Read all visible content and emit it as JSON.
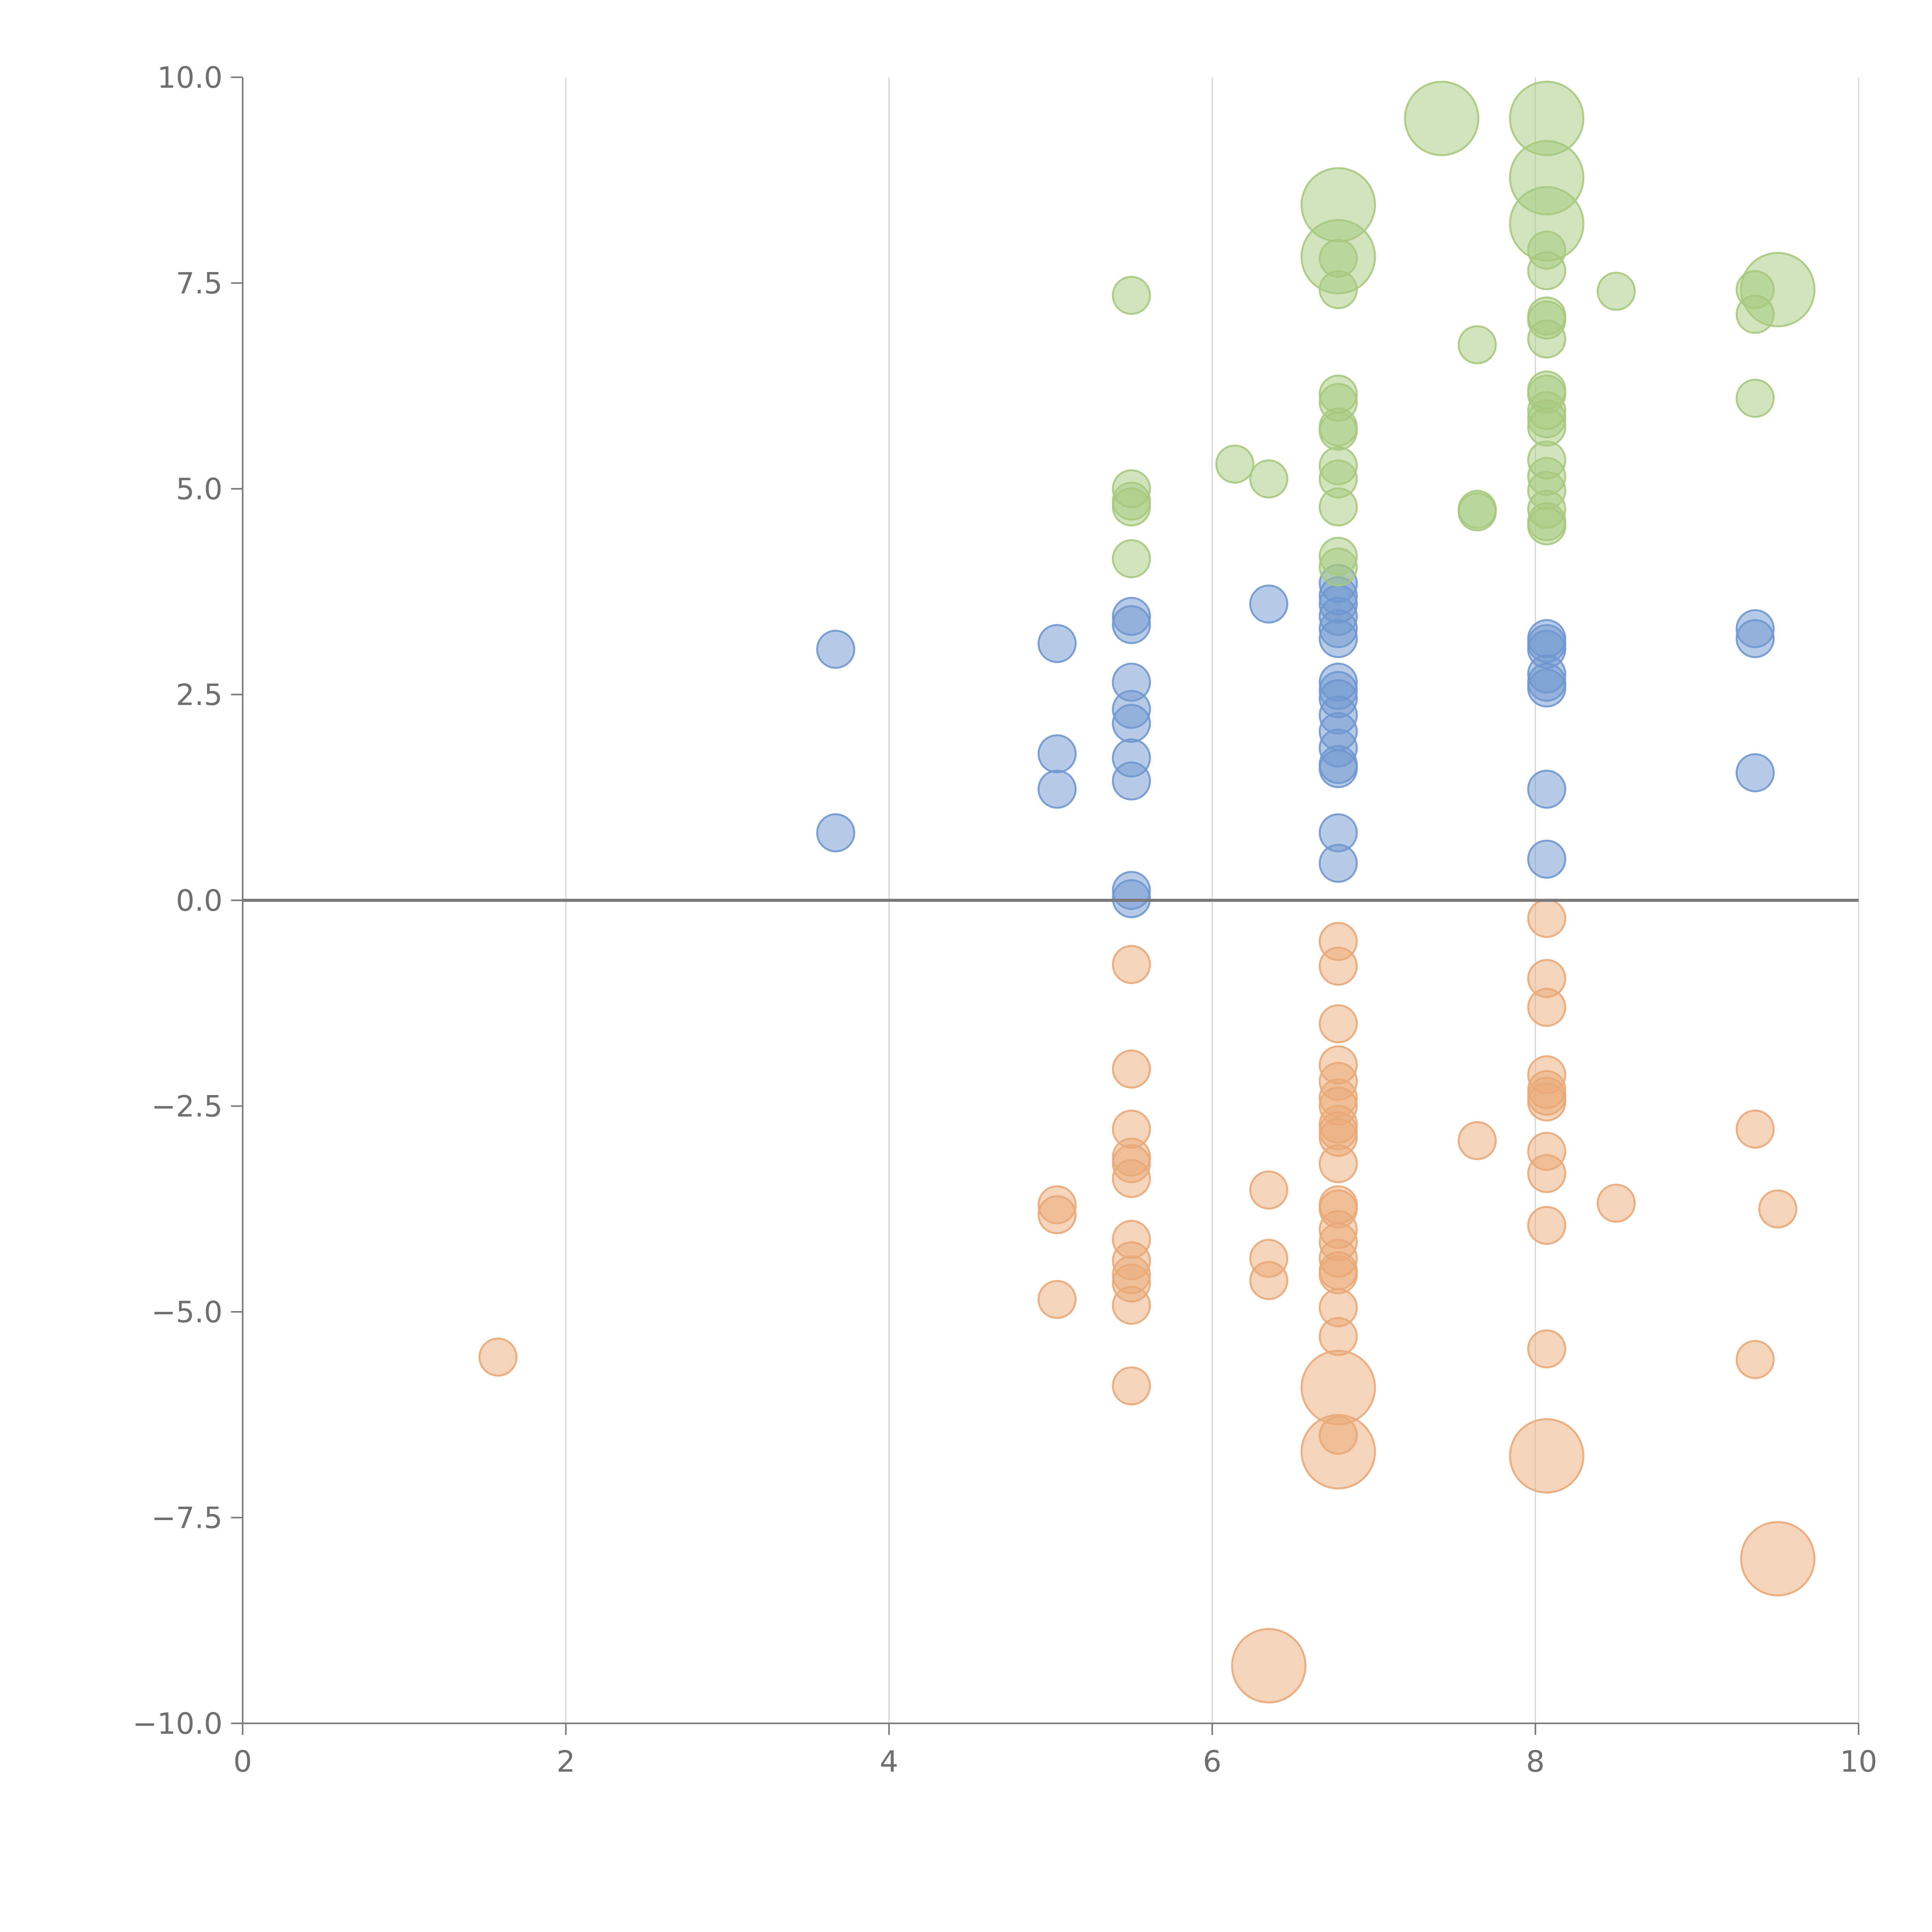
{
  "chart_data": {
    "type": "scatter",
    "title": "",
    "xlabel": "",
    "ylabel": "",
    "xlim": [
      0,
      10
    ],
    "ylim": [
      -10,
      10
    ],
    "x_ticks": [
      0,
      2,
      4,
      6,
      8,
      10
    ],
    "x_tick_labels": [
      "0",
      "2",
      "4",
      "6",
      "8",
      "10"
    ],
    "y_ticks": [
      10,
      7.5,
      5,
      2.5,
      0,
      -2.5,
      -5,
      -7.5,
      -10
    ],
    "y_tick_labels": [
      "10.0",
      "7.5",
      "5.0",
      "2.5",
      "0.0",
      "−2.5",
      "−5.0",
      "−7.5",
      "−10.0"
    ],
    "grid": "vertical",
    "zero_line": 0,
    "size_encoding": "bubble radius, small = 1, large = 2",
    "series": [
      {
        "name": "blue",
        "color": "#6f97cf",
        "points": [
          [
            3.67,
            3.05,
            1
          ],
          [
            3.67,
            0.82,
            1
          ],
          [
            5.04,
            3.12,
            1
          ],
          [
            5.04,
            1.78,
            1
          ],
          [
            5.04,
            1.35,
            1
          ],
          [
            5.5,
            3.45,
            1
          ],
          [
            5.5,
            3.35,
            1
          ],
          [
            5.5,
            2.65,
            1
          ],
          [
            5.5,
            2.32,
            1
          ],
          [
            5.5,
            2.15,
            1
          ],
          [
            5.5,
            1.73,
            1
          ],
          [
            5.5,
            1.45,
            1
          ],
          [
            5.5,
            0.12,
            1
          ],
          [
            5.5,
            0.02,
            1
          ],
          [
            6.35,
            3.6,
            1
          ],
          [
            6.78,
            3.85,
            1
          ],
          [
            6.78,
            3.7,
            1
          ],
          [
            6.78,
            3.6,
            1
          ],
          [
            6.78,
            3.45,
            1
          ],
          [
            6.78,
            3.3,
            1
          ],
          [
            6.78,
            3.18,
            1
          ],
          [
            6.78,
            2.65,
            1
          ],
          [
            6.78,
            2.55,
            1
          ],
          [
            6.78,
            2.45,
            1
          ],
          [
            6.78,
            2.25,
            1
          ],
          [
            6.78,
            2.05,
            1
          ],
          [
            6.78,
            1.85,
            1
          ],
          [
            6.78,
            1.65,
            1
          ],
          [
            6.78,
            1.6,
            1
          ],
          [
            6.78,
            0.82,
            1
          ],
          [
            6.78,
            0.45,
            1
          ],
          [
            8.07,
            3.18,
            1
          ],
          [
            8.07,
            3.12,
            1
          ],
          [
            8.07,
            3.05,
            1
          ],
          [
            8.07,
            2.75,
            1
          ],
          [
            8.07,
            2.65,
            1
          ],
          [
            8.07,
            2.58,
            1
          ],
          [
            8.07,
            1.35,
            1
          ],
          [
            8.07,
            0.5,
            1
          ],
          [
            9.36,
            3.3,
            1
          ],
          [
            9.36,
            3.18,
            1
          ],
          [
            9.36,
            1.55,
            1
          ]
        ]
      },
      {
        "name": "green",
        "color": "#a6c97e",
        "points": [
          [
            5.5,
            7.35,
            1
          ],
          [
            5.5,
            5.0,
            1
          ],
          [
            5.5,
            4.85,
            1
          ],
          [
            5.5,
            4.78,
            1
          ],
          [
            5.5,
            4.15,
            1
          ],
          [
            6.14,
            5.3,
            1
          ],
          [
            6.35,
            5.12,
            1
          ],
          [
            6.78,
            8.45,
            2
          ],
          [
            6.78,
            7.82,
            2
          ],
          [
            6.78,
            7.8,
            1
          ],
          [
            6.78,
            7.42,
            1
          ],
          [
            6.78,
            6.15,
            1
          ],
          [
            6.78,
            6.05,
            1
          ],
          [
            6.78,
            5.75,
            1
          ],
          [
            6.78,
            5.7,
            1
          ],
          [
            6.78,
            5.28,
            1
          ],
          [
            6.78,
            5.12,
            1
          ],
          [
            6.78,
            4.78,
            1
          ],
          [
            6.78,
            4.18,
            1
          ],
          [
            6.78,
            4.05,
            1
          ],
          [
            7.42,
            9.5,
            2
          ],
          [
            7.64,
            6.75,
            1
          ],
          [
            7.64,
            4.75,
            1
          ],
          [
            7.64,
            4.72,
            1
          ],
          [
            8.07,
            9.5,
            2
          ],
          [
            8.07,
            8.78,
            2
          ],
          [
            8.07,
            8.22,
            2
          ],
          [
            8.07,
            7.9,
            1
          ],
          [
            8.07,
            7.65,
            1
          ],
          [
            8.07,
            7.1,
            1
          ],
          [
            8.07,
            7.05,
            1
          ],
          [
            8.07,
            6.82,
            1
          ],
          [
            8.07,
            6.2,
            1
          ],
          [
            8.07,
            6.15,
            1
          ],
          [
            8.07,
            5.95,
            1
          ],
          [
            8.07,
            5.85,
            1
          ],
          [
            8.07,
            5.75,
            1
          ],
          [
            8.07,
            5.35,
            1
          ],
          [
            8.07,
            5.15,
            1
          ],
          [
            8.07,
            4.98,
            1
          ],
          [
            8.07,
            4.75,
            1
          ],
          [
            8.07,
            4.6,
            1
          ],
          [
            8.07,
            4.55,
            1
          ],
          [
            8.5,
            7.4,
            1
          ],
          [
            9.36,
            7.42,
            1
          ],
          [
            9.36,
            7.12,
            1
          ],
          [
            9.36,
            6.1,
            1
          ],
          [
            9.5,
            7.42,
            2
          ]
        ]
      },
      {
        "name": "orange",
        "color": "#e9a978",
        "points": [
          [
            1.58,
            -5.55,
            1
          ],
          [
            5.04,
            -3.7,
            1
          ],
          [
            5.04,
            -3.82,
            1
          ],
          [
            5.04,
            -4.85,
            1
          ],
          [
            5.5,
            -0.78,
            1
          ],
          [
            5.5,
            -2.05,
            1
          ],
          [
            5.5,
            -2.78,
            1
          ],
          [
            5.5,
            -3.12,
            1
          ],
          [
            5.5,
            -3.2,
            1
          ],
          [
            5.5,
            -3.38,
            1
          ],
          [
            5.5,
            -4.12,
            1
          ],
          [
            5.5,
            -4.38,
            1
          ],
          [
            5.5,
            -4.55,
            1
          ],
          [
            5.5,
            -4.65,
            1
          ],
          [
            5.5,
            -4.92,
            1
          ],
          [
            5.5,
            -5.9,
            1
          ],
          [
            6.35,
            -3.52,
            1
          ],
          [
            6.35,
            -4.35,
            1
          ],
          [
            6.35,
            -4.62,
            1
          ],
          [
            6.35,
            -9.3,
            2
          ],
          [
            6.78,
            -0.5,
            1
          ],
          [
            6.78,
            -0.8,
            1
          ],
          [
            6.78,
            -1.5,
            1
          ],
          [
            6.78,
            -2.0,
            1
          ],
          [
            6.78,
            -2.2,
            1
          ],
          [
            6.78,
            -2.4,
            1
          ],
          [
            6.78,
            -2.5,
            1
          ],
          [
            6.78,
            -2.72,
            1
          ],
          [
            6.78,
            -2.8,
            1
          ],
          [
            6.78,
            -2.88,
            1
          ],
          [
            6.78,
            -3.2,
            1
          ],
          [
            6.78,
            -3.7,
            1
          ],
          [
            6.78,
            -3.75,
            1
          ],
          [
            6.78,
            -4.0,
            1
          ],
          [
            6.78,
            -4.15,
            1
          ],
          [
            6.78,
            -4.35,
            1
          ],
          [
            6.78,
            -4.5,
            1
          ],
          [
            6.78,
            -4.55,
            1
          ],
          [
            6.78,
            -4.95,
            1
          ],
          [
            6.78,
            -5.3,
            1
          ],
          [
            6.78,
            -5.92,
            2
          ],
          [
            6.78,
            -6.5,
            1
          ],
          [
            6.78,
            -6.7,
            2
          ],
          [
            7.64,
            -2.92,
            1
          ],
          [
            8.07,
            -0.22,
            1
          ],
          [
            8.07,
            -0.95,
            1
          ],
          [
            8.07,
            -1.3,
            1
          ],
          [
            8.07,
            -2.12,
            1
          ],
          [
            8.07,
            -2.3,
            1
          ],
          [
            8.07,
            -2.38,
            1
          ],
          [
            8.07,
            -2.45,
            1
          ],
          [
            8.07,
            -3.05,
            1
          ],
          [
            8.07,
            -3.32,
            1
          ],
          [
            8.07,
            -3.95,
            1
          ],
          [
            8.07,
            -5.45,
            1
          ],
          [
            8.07,
            -6.75,
            2
          ],
          [
            8.5,
            -3.68,
            1
          ],
          [
            9.36,
            -2.78,
            1
          ],
          [
            9.36,
            -5.58,
            1
          ],
          [
            9.5,
            -3.75,
            1
          ],
          [
            9.5,
            -8.0,
            2
          ]
        ]
      }
    ]
  }
}
